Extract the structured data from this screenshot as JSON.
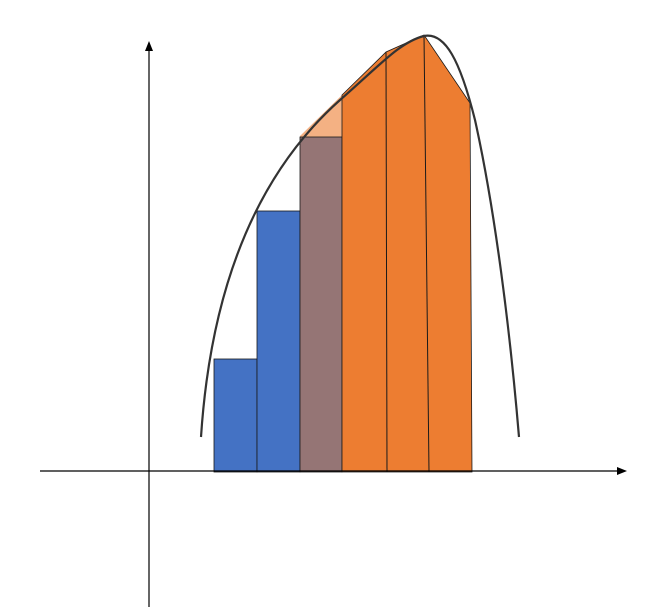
{
  "diagram": {
    "colors": {
      "background": "#ffffff",
      "axis": "#000000",
      "curve": "#333333",
      "blue_rect": "#4472c4",
      "mauve_rect": "#957575",
      "orange_region": "#ed7d31",
      "light_orange_trap": "#f4b183",
      "edge": "#1a1a1a"
    },
    "elements": {
      "left_rectangles": 2,
      "middle_rectangles": 1,
      "right_trapezoids": 3
    }
  }
}
